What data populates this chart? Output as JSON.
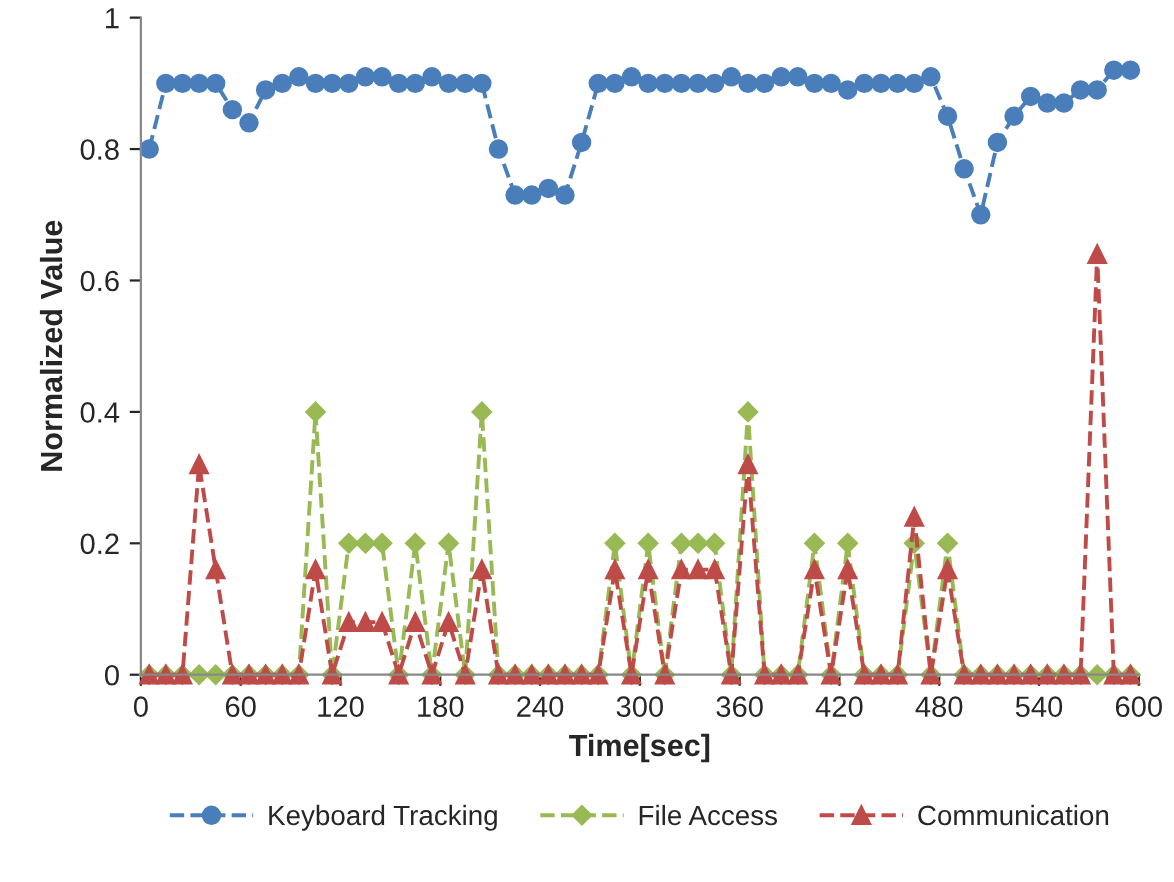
{
  "chart_data": {
    "type": "line",
    "xlabel": "Time[sec]",
    "ylabel": "Normalized Value",
    "x": [
      5,
      15,
      25,
      35,
      45,
      55,
      65,
      75,
      85,
      95,
      105,
      115,
      125,
      135,
      145,
      155,
      165,
      175,
      185,
      195,
      205,
      215,
      225,
      235,
      245,
      255,
      265,
      275,
      285,
      295,
      305,
      315,
      325,
      335,
      345,
      355,
      365,
      375,
      385,
      395,
      405,
      415,
      425,
      435,
      445,
      455,
      465,
      475,
      485,
      495,
      505,
      515,
      525,
      535,
      545,
      555,
      565,
      575,
      585,
      595
    ],
    "series": [
      {
        "name": "Keyboard Tracking",
        "color": "#4a7ebb",
        "marker": "circle",
        "values": [
          0.8,
          0.9,
          0.9,
          0.9,
          0.9,
          0.86,
          0.84,
          0.89,
          0.9,
          0.91,
          0.9,
          0.9,
          0.9,
          0.91,
          0.91,
          0.9,
          0.9,
          0.91,
          0.9,
          0.9,
          0.9,
          0.8,
          0.73,
          0.73,
          0.74,
          0.73,
          0.81,
          0.9,
          0.9,
          0.91,
          0.9,
          0.9,
          0.9,
          0.9,
          0.9,
          0.91,
          0.9,
          0.9,
          0.91,
          0.91,
          0.9,
          0.9,
          0.89,
          0.9,
          0.9,
          0.9,
          0.9,
          0.91,
          0.85,
          0.77,
          0.7,
          0.81,
          0.85,
          0.88,
          0.87,
          0.87,
          0.89,
          0.89,
          0.92,
          0.92
        ]
      },
      {
        "name": "File Access",
        "color": "#98b954",
        "marker": "diamond",
        "values": [
          0,
          0,
          0,
          0,
          0,
          0,
          0,
          0,
          0,
          0,
          0.4,
          0,
          0.2,
          0.2,
          0.2,
          0,
          0.2,
          0,
          0.2,
          0,
          0.4,
          0,
          0,
          0,
          0,
          0,
          0,
          0,
          0.2,
          0,
          0.2,
          0,
          0.2,
          0.2,
          0.2,
          0,
          0.4,
          0,
          0,
          0,
          0.2,
          0,
          0.2,
          0,
          0,
          0,
          0.2,
          0,
          0.2,
          0,
          0,
          0,
          0,
          0,
          0,
          0,
          0,
          0,
          0,
          0
        ]
      },
      {
        "name": "Communication",
        "color": "#be4b48",
        "marker": "triangle",
        "values": [
          0,
          0,
          0,
          0.32,
          0.16,
          0,
          0,
          0,
          0,
          0,
          0.16,
          0,
          0.08,
          0.08,
          0.08,
          0,
          0.08,
          0,
          0.08,
          0,
          0.16,
          0,
          0,
          0,
          0,
          0,
          0,
          0,
          0.16,
          0,
          0.16,
          0,
          0.16,
          0.16,
          0.16,
          0,
          0.32,
          0,
          0,
          0,
          0.16,
          0,
          0.16,
          0,
          0,
          0,
          0.24,
          0,
          0.16,
          0,
          0,
          0,
          0,
          0,
          0,
          0,
          0,
          0.64,
          0,
          0
        ]
      }
    ],
    "line_style": "dashed",
    "legend": "bottom",
    "grid": false,
    "xlim": [
      0,
      600
    ],
    "xticks": [
      0,
      60,
      120,
      180,
      240,
      300,
      360,
      420,
      480,
      540,
      600
    ],
    "ylim": [
      0,
      1
    ],
    "yticks": [
      0,
      0.2,
      0.4,
      0.6,
      0.8,
      1
    ]
  }
}
